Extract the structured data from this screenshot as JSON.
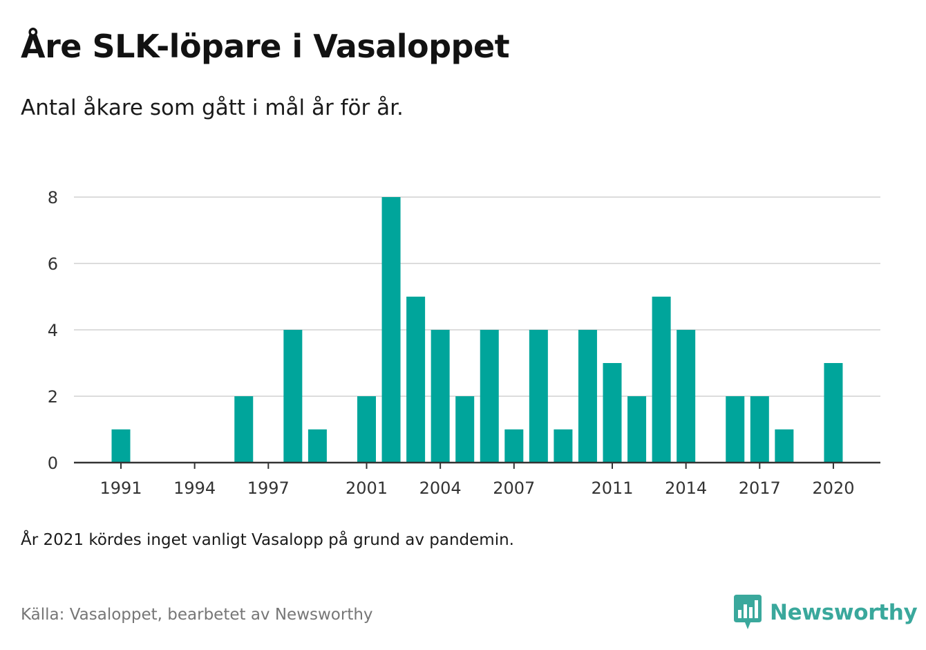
{
  "header": {
    "title": "Åre SLK-löpare i Vasaloppet",
    "subtitle": "Antal åkare som gått i mål år för år."
  },
  "footer": {
    "note": "År 2021 kördes inget vanligt Vasalopp på grund av pandemin.",
    "source": "Källa: Vasaloppet, bearbetet av Newsworthy",
    "brand": "Newsworthy",
    "brand_icon": "newsworthy-bar-chart-logo-icon"
  },
  "colors": {
    "bar": "#00a59b",
    "brand": "#3aa89c",
    "grid": "#dcdcdc",
    "axis": "#333333"
  },
  "chart_data": {
    "type": "bar",
    "x": [
      1991,
      1992,
      1993,
      1994,
      1995,
      1996,
      1997,
      1998,
      1999,
      2000,
      2001,
      2002,
      2003,
      2004,
      2005,
      2006,
      2007,
      2008,
      2009,
      2010,
      2011,
      2012,
      2013,
      2014,
      2015,
      2016,
      2017,
      2018,
      2019,
      2020
    ],
    "values": [
      1,
      0,
      0,
      0,
      0,
      2,
      0,
      4,
      1,
      0,
      2,
      8,
      5,
      4,
      2,
      4,
      1,
      4,
      1,
      4,
      3,
      2,
      5,
      4,
      0,
      2,
      2,
      1,
      0,
      3
    ],
    "x_tick_labels": [
      1991,
      1994,
      1997,
      2001,
      2004,
      2007,
      2011,
      2014,
      2017,
      2020
    ],
    "y_ticks": [
      0,
      2,
      4,
      6,
      8
    ],
    "ylim": [
      0,
      8
    ],
    "xlabel": "",
    "ylabel": "",
    "grid": true,
    "legend": "none"
  }
}
